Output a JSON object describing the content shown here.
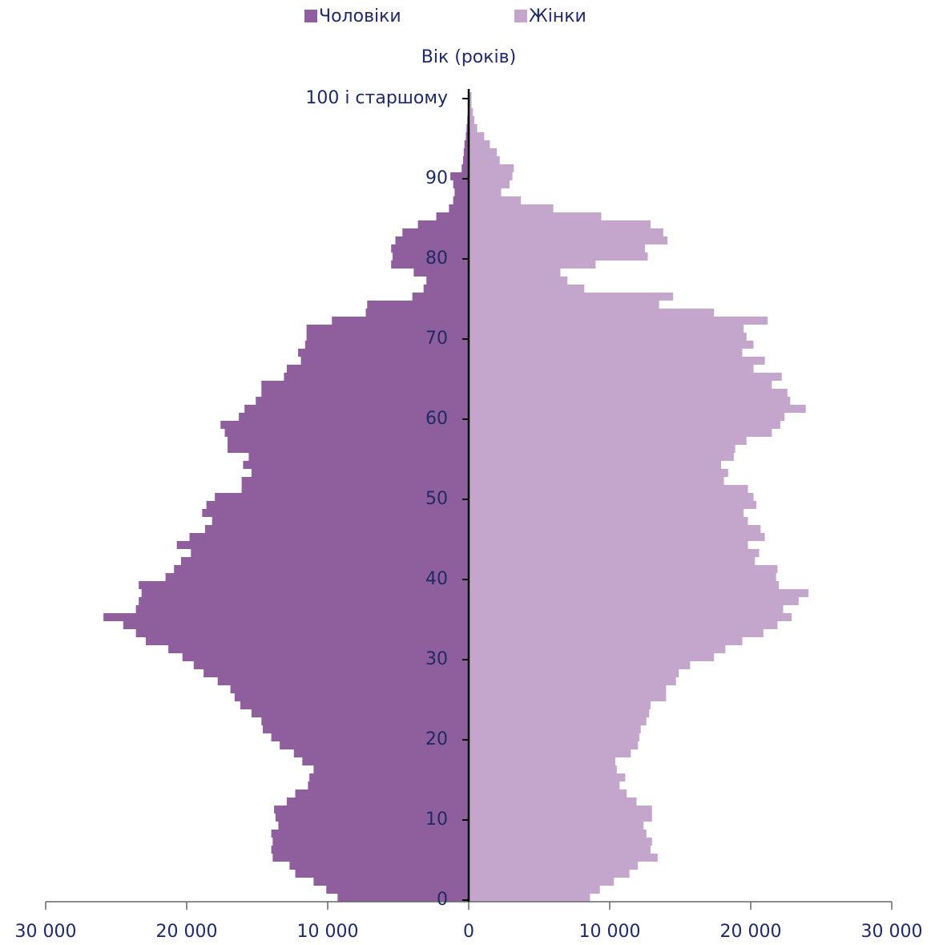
{
  "chart_data": {
    "type": "pyramid",
    "title": "Вік (років)",
    "categories": [
      0,
      null,
      null,
      null,
      null,
      null,
      null,
      null,
      null,
      null,
      10,
      null,
      null,
      null,
      null,
      null,
      null,
      null,
      null,
      null,
      20,
      null,
      null,
      null,
      null,
      null,
      null,
      null,
      null,
      null,
      30,
      null,
      null,
      null,
      null,
      null,
      null,
      null,
      null,
      null,
      40,
      null,
      null,
      null,
      null,
      null,
      null,
      null,
      null,
      null,
      50,
      null,
      null,
      null,
      null,
      null,
      null,
      null,
      null,
      null,
      60,
      null,
      null,
      null,
      null,
      null,
      null,
      null,
      null,
      null,
      70,
      null,
      null,
      null,
      null,
      null,
      null,
      null,
      null,
      null,
      80,
      null,
      null,
      null,
      null,
      null,
      null,
      null,
      null,
      null,
      90,
      null,
      null,
      null,
      null,
      null,
      null,
      null,
      null,
      null,
      "100 і старшому"
    ],
    "series": [
      {
        "name": "Чоловіки",
        "color": "#8f5e9c",
        "side": "left",
        "values": [
          9300,
          10100,
          11000,
          12300,
          12700,
          13900,
          14000,
          13900,
          14000,
          13500,
          13700,
          13800,
          12900,
          12300,
          11400,
          11300,
          11000,
          11800,
          12400,
          13400,
          14000,
          14600,
          14700,
          15400,
          16200,
          16600,
          16900,
          17800,
          18800,
          19500,
          20300,
          21300,
          22900,
          23600,
          24500,
          25900,
          23600,
          23400,
          23200,
          23400,
          21500,
          20900,
          20400,
          19700,
          20700,
          19800,
          18700,
          18200,
          18900,
          18600,
          18000,
          16100,
          16100,
          15400,
          16000,
          15600,
          17100,
          17100,
          17300,
          17600,
          16300,
          15900,
          15100,
          14700,
          14700,
          13100,
          12900,
          11900,
          12100,
          11600,
          11500,
          11500,
          9700,
          7300,
          7200,
          4000,
          3200,
          3000,
          3900,
          5500,
          5400,
          5500,
          5200,
          4700,
          3600,
          2300,
          1400,
          1100,
          1000,
          1100,
          1300,
          500,
          400,
          350,
          300,
          200,
          150,
          100,
          60,
          50,
          50
        ]
      },
      {
        "name": "Жінки",
        "color": "#c4a6cc",
        "side": "right",
        "values": [
          8600,
          9300,
          10300,
          11400,
          12000,
          13400,
          12900,
          13000,
          12600,
          12400,
          13000,
          13000,
          11900,
          11200,
          10700,
          11100,
          10500,
          10400,
          11500,
          12000,
          12100,
          12200,
          12600,
          12800,
          12900,
          14000,
          14000,
          14700,
          14900,
          15700,
          17400,
          18200,
          19400,
          20900,
          21900,
          22900,
          22300,
          23400,
          24100,
          22000,
          21800,
          21900,
          20300,
          20600,
          19800,
          21000,
          20700,
          19800,
          19500,
          20400,
          20200,
          19800,
          18100,
          18400,
          17900,
          18800,
          18900,
          19700,
          21500,
          22100,
          22400,
          23900,
          22800,
          22600,
          21500,
          22200,
          20200,
          21000,
          19400,
          20200,
          19700,
          19500,
          21200,
          17400,
          13500,
          14500,
          8200,
          7000,
          6500,
          9000,
          12700,
          12500,
          14100,
          13800,
          12900,
          9400,
          6000,
          3700,
          2300,
          2900,
          3100,
          3200,
          2200,
          2000,
          1500,
          1100,
          600,
          400,
          300,
          200,
          200
        ]
      }
    ],
    "xlim": [
      0,
      30000
    ],
    "xticks": [
      0,
      {
        "value": 10000,
        "label": "10 000"
      },
      {
        "value": 20000,
        "label": "20 000"
      },
      {
        "value": 30000,
        "label": "30 000"
      }
    ],
    "left_xticks": [
      {
        "value": 10000,
        "label": "10 000"
      },
      {
        "value": 20000,
        "label": "20 000"
      },
      {
        "value": 30000,
        "label": "30 000"
      }
    ]
  }
}
